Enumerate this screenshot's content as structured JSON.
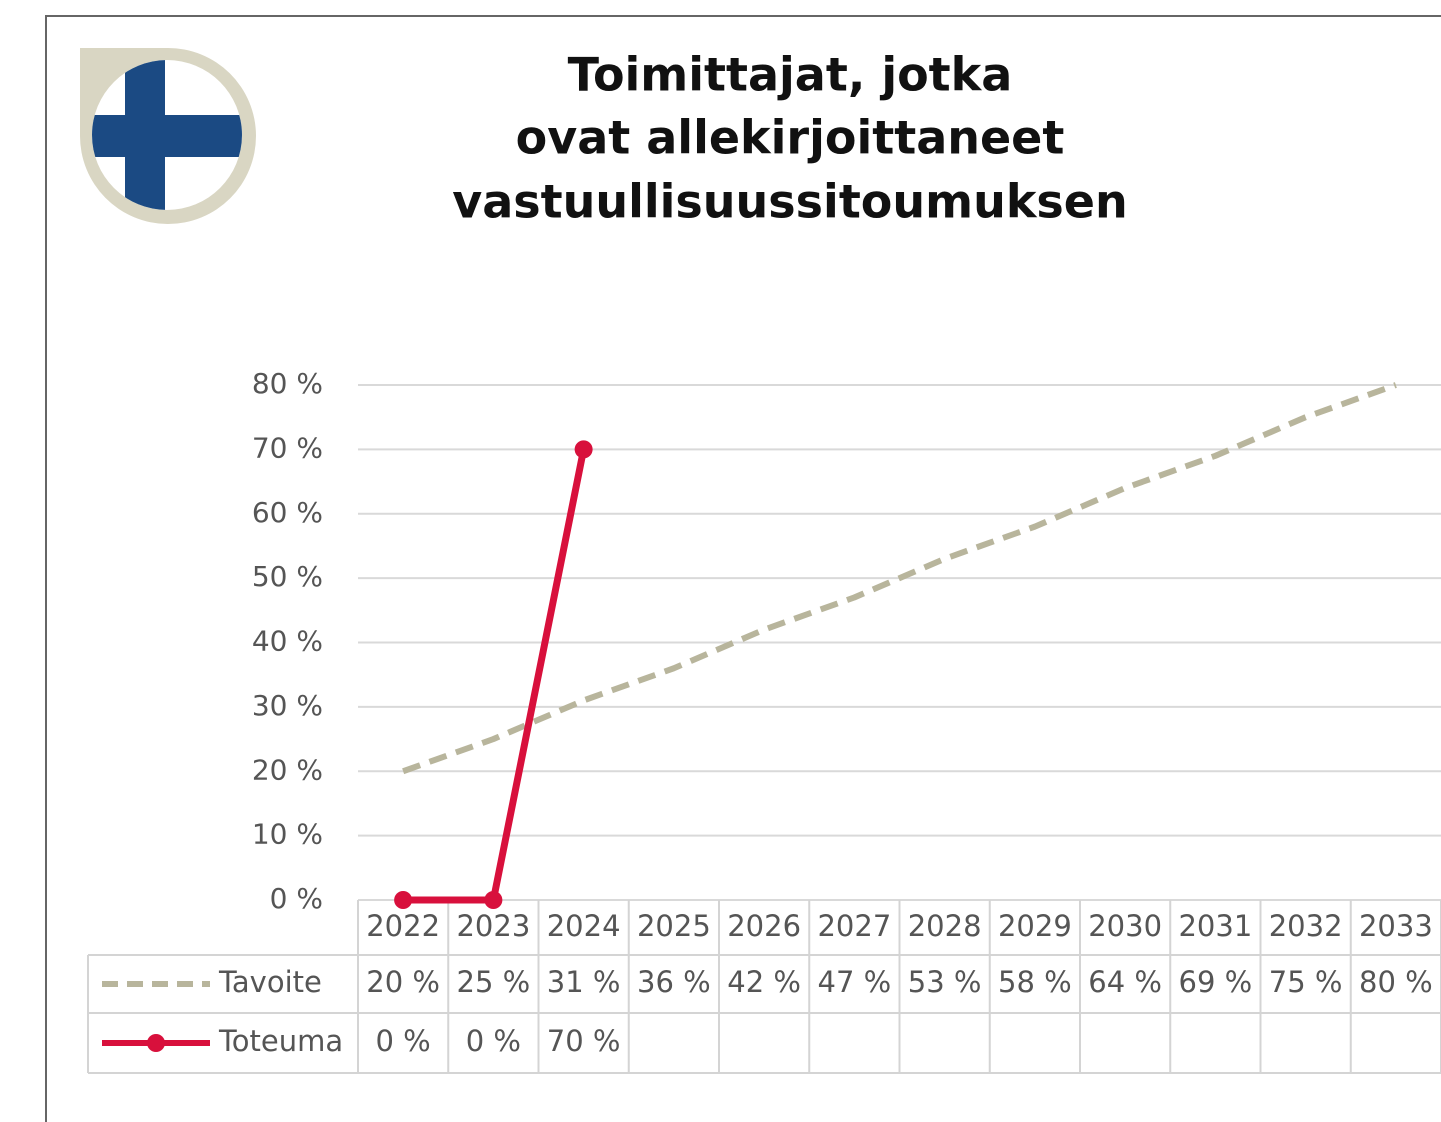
{
  "chart_data": {
    "type": "line",
    "title": [
      "Toimittajat, jotka",
      "ovat allekirjoittaneet",
      "vastuullisuussitoumuksen"
    ],
    "categories": [
      "2022",
      "2023",
      "2024",
      "2025",
      "2026",
      "2027",
      "2028",
      "2029",
      "2030",
      "2031",
      "2032",
      "2033"
    ],
    "series": [
      {
        "name": "Tavoite",
        "color": "#b8b59c",
        "dashed": true,
        "values": [
          20,
          25,
          31,
          36,
          42,
          47,
          53,
          58,
          64,
          69,
          75,
          80
        ],
        "value_labels": [
          "20 %",
          "25 %",
          "31 %",
          "36 %",
          "42 %",
          "47 %",
          "53 %",
          "58 %",
          "64 %",
          "69 %",
          "75 %",
          "80 %"
        ]
      },
      {
        "name": "Toteuma",
        "color": "#d8103c",
        "dashed": false,
        "markers": true,
        "values": [
          0,
          0,
          70,
          null,
          null,
          null,
          null,
          null,
          null,
          null,
          null,
          null
        ],
        "value_labels": [
          "0 %",
          "0 %",
          "70 %",
          null,
          null,
          null,
          null,
          null,
          null,
          null,
          null,
          null
        ]
      }
    ],
    "ylim": [
      0,
      80
    ],
    "yticks": [
      {
        "value": 0,
        "label": "0 %"
      },
      {
        "value": 10,
        "label": "10 %"
      },
      {
        "value": 20,
        "label": "20 %"
      },
      {
        "value": 30,
        "label": "30 %"
      },
      {
        "value": 40,
        "label": "40 %"
      },
      {
        "value": 50,
        "label": "50 %"
      },
      {
        "value": 60,
        "label": "60 %"
      },
      {
        "value": 70,
        "label": "70 %"
      },
      {
        "value": 80,
        "label": "80 %"
      }
    ],
    "grid": true
  }
}
